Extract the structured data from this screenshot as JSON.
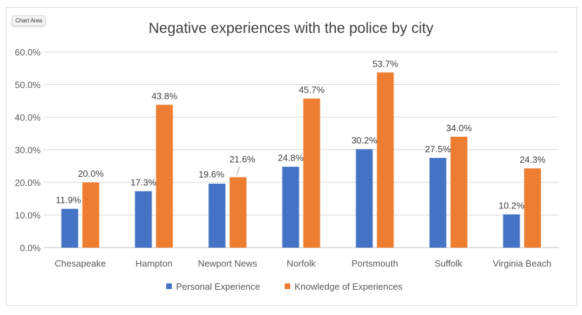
{
  "badge": "Chart Area",
  "chart_data": {
    "type": "bar",
    "title": "Negative experiences with the police by city",
    "categories": [
      "Chesapeake",
      "Hampton",
      "Newport News",
      "Norfolk",
      "Portsmouth",
      "Suffolk",
      "Virginia Beach"
    ],
    "series": [
      {
        "name": "Personal Experience",
        "color": "#4472C4",
        "values": [
          11.9,
          17.3,
          19.6,
          24.8,
          30.2,
          27.5,
          10.2
        ],
        "labels": [
          "11.9%",
          "17.3%",
          "19.6%",
          "24.8%",
          "30.2%",
          "27.5%",
          "10.2%"
        ]
      },
      {
        "name": "Knowledge of Experiences",
        "color": "#ED7D31",
        "values": [
          20.0,
          43.8,
          21.6,
          45.7,
          53.7,
          34.0,
          24.3
        ],
        "labels": [
          "20.0%",
          "43.8%",
          "21.6%",
          "45.7%",
          "53.7%",
          "34.0%",
          "24.3%"
        ]
      }
    ],
    "ylim": [
      0,
      60
    ],
    "yticks": [
      "0.0%",
      "10.0%",
      "20.0%",
      "30.0%",
      "40.0%",
      "50.0%",
      "60.0%"
    ],
    "grid": true,
    "legend": "bottom"
  }
}
